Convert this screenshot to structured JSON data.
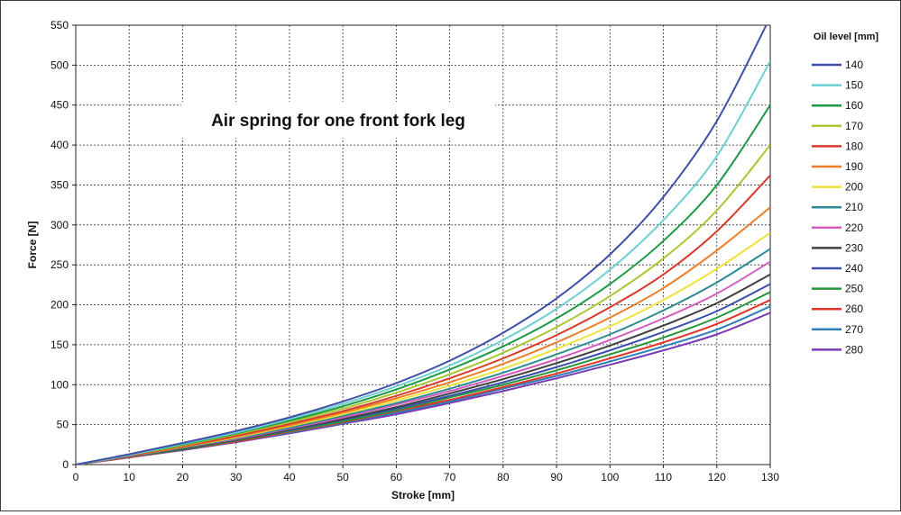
{
  "chart_data": {
    "type": "line",
    "title": "Air spring for one front fork leg",
    "xlabel": "Stroke [mm]",
    "ylabel": "Force [N]",
    "xlim": [
      0,
      130
    ],
    "ylim": [
      0,
      550
    ],
    "x_ticks": [
      "0",
      "10",
      "20",
      "30",
      "40",
      "50",
      "60",
      "70",
      "80",
      "90",
      "100",
      "110",
      "120",
      "130"
    ],
    "y_ticks": [
      "0",
      "50",
      "100",
      "150",
      "200",
      "250",
      "300",
      "350",
      "400",
      "450",
      "500",
      "550"
    ],
    "grid": "on",
    "legend": {
      "title": "Oil level [mm]",
      "placement": "right"
    },
    "x": [
      0,
      10,
      20,
      30,
      40,
      50,
      60,
      70,
      80,
      90,
      100,
      110,
      120,
      130
    ],
    "series": [
      {
        "name": "140",
        "color": "#3f4fa8",
        "values": [
          0,
          13,
          27,
          42,
          59,
          79,
          102,
          130,
          165,
          208,
          263,
          335,
          430,
          560
        ]
      },
      {
        "name": "150",
        "color": "#6ccfd2",
        "values": [
          0,
          12,
          26,
          40,
          57,
          76,
          98,
          124,
          156,
          195,
          244,
          306,
          386,
          505
        ]
      },
      {
        "name": "160",
        "color": "#1e9a45",
        "values": [
          0,
          12,
          25,
          39,
          55,
          73,
          94,
          119,
          148,
          183,
          226,
          280,
          350,
          450
        ]
      },
      {
        "name": "170",
        "color": "#a8c832",
        "values": [
          0,
          12,
          24,
          38,
          53,
          70,
          90,
          113,
          140,
          172,
          211,
          258,
          318,
          400
        ]
      },
      {
        "name": "180",
        "color": "#d93a2b",
        "values": [
          0,
          11,
          23,
          36,
          51,
          67,
          86,
          108,
          133,
          162,
          197,
          238,
          292,
          362
        ]
      },
      {
        "name": "190",
        "color": "#ee7d2a",
        "values": [
          0,
          11,
          22,
          35,
          49,
          65,
          83,
          103,
          126,
          153,
          184,
          221,
          268,
          322
        ]
      },
      {
        "name": "200",
        "color": "#efe23a",
        "values": [
          0,
          11,
          22,
          34,
          48,
          63,
          80,
          99,
          120,
          145,
          173,
          206,
          245,
          290
        ]
      },
      {
        "name": "210",
        "color": "#2e8a92",
        "values": [
          0,
          10,
          21,
          33,
          46,
          61,
          77,
          95,
          115,
          138,
          163,
          193,
          228,
          270
        ]
      },
      {
        "name": "220",
        "color": "#d45cc0",
        "values": [
          0,
          10,
          21,
          32,
          45,
          59,
          75,
          92,
          111,
          132,
          156,
          183,
          214,
          254
        ]
      },
      {
        "name": "230",
        "color": "#404040",
        "values": [
          0,
          10,
          20,
          31,
          44,
          57,
          72,
          89,
          107,
          127,
          149,
          174,
          202,
          238
        ]
      },
      {
        "name": "240",
        "color": "#3b4faf",
        "values": [
          0,
          10,
          20,
          31,
          43,
          56,
          70,
          86,
          103,
          122,
          143,
          166,
          192,
          226
        ]
      },
      {
        "name": "250",
        "color": "#24963c",
        "values": [
          0,
          10,
          19,
          30,
          42,
          54,
          68,
          84,
          100,
          118,
          138,
          159,
          184,
          216
        ]
      },
      {
        "name": "260",
        "color": "#e03528",
        "values": [
          0,
          9,
          19,
          29,
          41,
          53,
          67,
          81,
          97,
          114,
          133,
          153,
          176,
          206
        ]
      },
      {
        "name": "270",
        "color": "#2d7fb8",
        "values": [
          0,
          9,
          19,
          29,
          40,
          52,
          65,
          79,
          95,
          111,
          129,
          148,
          169,
          198
        ]
      },
      {
        "name": "280",
        "color": "#7a3ab3",
        "values": [
          0,
          9,
          18,
          28,
          39,
          51,
          63,
          77,
          92,
          108,
          125,
          143,
          163,
          190
        ]
      }
    ]
  }
}
